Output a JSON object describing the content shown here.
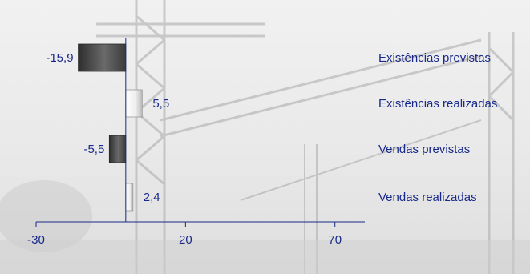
{
  "chart_data": {
    "type": "bar",
    "orientation": "horizontal",
    "title": "",
    "xlabel": "",
    "ylabel": "",
    "categories": [
      "Existências previstas",
      "Existências realizadas",
      "Vendas previstas",
      "Vendas realizadas"
    ],
    "values": [
      -15.9,
      5.5,
      -5.5,
      2.4
    ],
    "value_labels": [
      "-15,9",
      "5,5",
      "-5,5",
      "2,4"
    ],
    "xlim": [
      -30,
      80
    ],
    "xticks": [
      -30,
      20,
      70
    ],
    "xtick_labels": [
      "-30",
      "20",
      "70"
    ],
    "grid": false,
    "legend": "none",
    "colors": {
      "text": "#1a2a8a",
      "axis": "#1a2a8a",
      "bar_dark": "#4a4a4a",
      "bar_light": "#f4f4f4"
    }
  }
}
